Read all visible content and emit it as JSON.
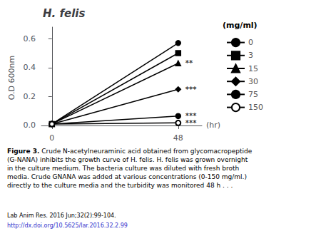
{
  "chart_data": {
    "type": "line",
    "title": "H. felis",
    "xlabel": "(hr)",
    "ylabel": "O.D 600nm",
    "legend_title": "(mg/ml)",
    "x": [
      0,
      48
    ],
    "series": [
      {
        "name": "0",
        "values": [
          0.01,
          0.57
        ],
        "marker": "circle",
        "color": "#000000"
      },
      {
        "name": "3",
        "values": [
          0.01,
          0.5
        ],
        "marker": "square",
        "color": "#000000"
      },
      {
        "name": "15",
        "values": [
          0.01,
          0.43
        ],
        "marker": "triangle",
        "color": "#000000"
      },
      {
        "name": "30",
        "values": [
          0.01,
          0.25
        ],
        "marker": "diamond",
        "color": "#000000"
      },
      {
        "name": "75",
        "values": [
          0.01,
          0.065
        ],
        "marker": "circle",
        "color": "#000000"
      },
      {
        "name": "150",
        "values": [
          0.01,
          0.018
        ],
        "marker": "open circle",
        "color": "#000000"
      }
    ],
    "annotations": [
      {
        "x": 48,
        "y": 0.43,
        "text": "**"
      },
      {
        "x": 48,
        "y": 0.25,
        "text": "***"
      },
      {
        "x": 48,
        "y": 0.065,
        "text": "***"
      },
      {
        "x": 48,
        "y": 0.018,
        "text": "***"
      }
    ],
    "xlim": [
      -4,
      57
    ],
    "xticks": [
      0,
      48
    ],
    "ylim": [
      -0.02,
      0.68
    ],
    "yticks": [
      {
        "value": 0.0,
        "label": "0.0"
      },
      0.2,
      0.4,
      0.6
    ],
    "grid": false,
    "caption_bold": "Figure 3.",
    "caption": "Crude N-acetylneuraminic acid obtained from glycomacropeptide (G-NANA) inhibits the growth curve of H. felis. H. felis was grown overnight in the culture medium. The bacteria culture was diluted with fresh broth media. Crude GNANA was added at various concentrations (0-150 mg/ml.) directly to the culture media and the turbidity was monitored 48 h . . .",
    "source": [
      "Lab Anim Res. 2016 Jun;32(2):99-104.",
      "http://dx.doi.org/10.5625/lar.2016.32.2.99"
    ]
  }
}
